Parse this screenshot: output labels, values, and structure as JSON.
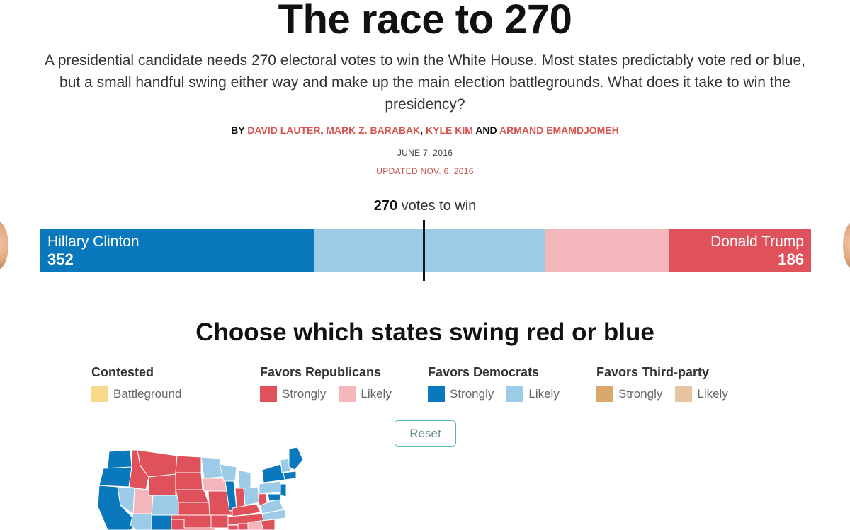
{
  "article": {
    "headline": "The race to 270",
    "dek": "A presidential candidate needs 270 electoral votes to win the White House. Most states predictably vote red or blue, but a small handful swing either way and make up the main election battlegrounds. What does it take to win the presidency?",
    "byline_prefix": "By",
    "authors": [
      "DAVID LAUTER",
      "MARK Z. BARABAK",
      "KYLE KIM",
      "ARMAND EMAMDJOMEH"
    ],
    "byline_and": "AND",
    "date": "JUNE 7, 2016",
    "updated": "UPDATED NOV. 6, 2016"
  },
  "tally": {
    "threshold_number": "270",
    "threshold_label": "votes to win",
    "left_candidate": {
      "name": "Hillary Clinton",
      "votes": "352"
    },
    "right_candidate": {
      "name": "Donald Trump",
      "votes": "186"
    },
    "segments": [
      {
        "group": "dem-strong",
        "color": "#0a78bd"
      },
      {
        "group": "dem-likely",
        "color": "#9ccbe8"
      },
      {
        "group": "rep-likely",
        "color": "#f2b6bb"
      },
      {
        "group": "rep-strong",
        "color": "#e0525b"
      }
    ]
  },
  "chooser": {
    "title": "Choose which states swing red or blue",
    "legend": [
      {
        "heading": "Contested",
        "items": [
          {
            "label": "Battleground",
            "color": "#f7d98b"
          }
        ]
      },
      {
        "heading": "Favors Republicans",
        "items": [
          {
            "label": "Strongly",
            "color": "#e0525b"
          },
          {
            "label": "Likely",
            "color": "#f2b6bb"
          }
        ]
      },
      {
        "heading": "Favors Democrats",
        "items": [
          {
            "label": "Strongly",
            "color": "#0a78bd"
          },
          {
            "label": "Likely",
            "color": "#9ccbe8"
          }
        ]
      },
      {
        "heading": "Favors Third-party",
        "items": [
          {
            "label": "Strongly",
            "color": "#d9a86a"
          },
          {
            "label": "Likely",
            "color": "#e9c4a0"
          }
        ]
      }
    ],
    "reset_label": "Reset"
  },
  "colors": {
    "accent_red": "#d9534f",
    "dem_strong": "#0a78bd",
    "dem_likely": "#9ccbe8",
    "rep_strong": "#e0525b",
    "rep_likely": "#f2b6bb"
  }
}
